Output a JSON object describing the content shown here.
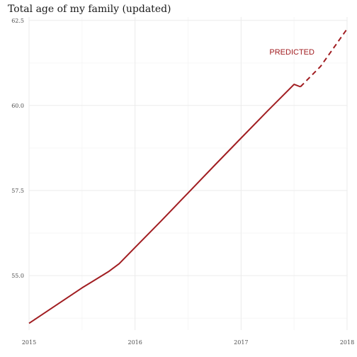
{
  "colors": {
    "series": "#a11d21",
    "annotation": "#a11d21"
  },
  "chart_data": {
    "type": "line",
    "title": "Total age of my family (updated)",
    "xlabel": "",
    "ylabel": "",
    "xlim": [
      2015,
      2018
    ],
    "ylim": [
      53.4,
      62.6
    ],
    "x_ticks": [
      2015,
      2016,
      2017,
      2018
    ],
    "x_tick_labels": [
      "2015",
      "2016",
      "2017",
      "2018"
    ],
    "y_ticks": [
      55.0,
      57.5,
      60.0,
      62.5
    ],
    "y_tick_labels": [
      "55.0",
      "57.5",
      "60.0",
      "62.5"
    ],
    "grid": true,
    "legend": "none",
    "series": [
      {
        "style": "solid",
        "x": [
          2015.0,
          2015.25,
          2015.5,
          2015.75,
          2015.85,
          2016.0,
          2016.25,
          2016.5,
          2016.75,
          2017.0,
          2017.25,
          2017.5,
          2017.56
        ],
        "y": [
          53.6,
          54.12,
          54.64,
          55.12,
          55.35,
          55.83,
          56.62,
          57.43,
          58.24,
          59.04,
          59.84,
          60.62,
          60.55
        ]
      },
      {
        "style": "dashed",
        "x": [
          2017.56,
          2017.75,
          2018.0
        ],
        "y": [
          60.55,
          61.15,
          62.25
        ]
      }
    ],
    "annotations": [
      {
        "text": "PREDICTED",
        "x": 2017.48,
        "y": 61.5
      }
    ]
  }
}
